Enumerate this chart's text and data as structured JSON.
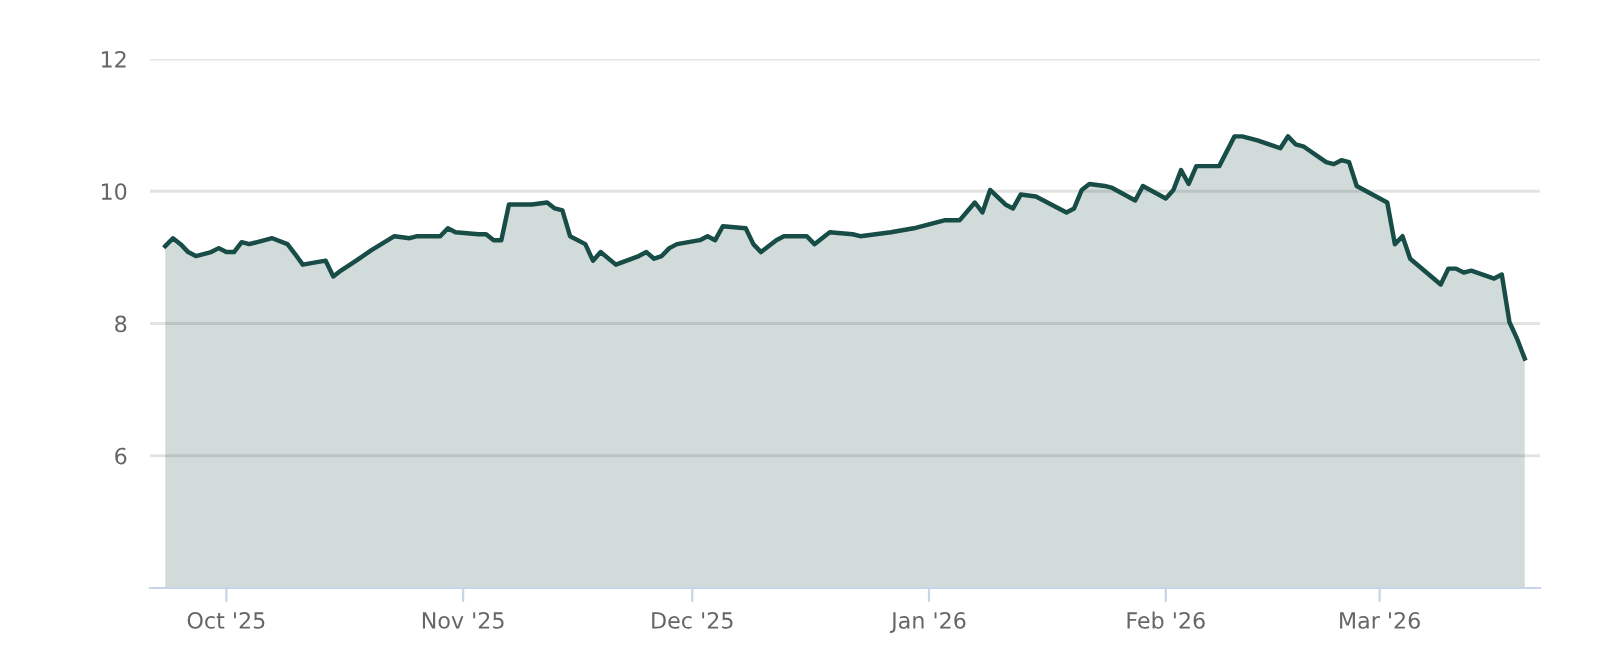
{
  "chart_data": {
    "type": "area",
    "x": [
      "2025-09-23",
      "2025-09-24",
      "2025-09-25",
      "2025-09-26",
      "2025-09-27",
      "2025-09-29",
      "2025-09-30",
      "2025-10-01",
      "2025-10-02",
      "2025-10-03",
      "2025-10-04",
      "2025-10-07",
      "2025-10-09",
      "2025-10-10",
      "2025-10-11",
      "2025-10-14",
      "2025-10-15",
      "2025-10-16",
      "2025-10-18",
      "2025-10-20",
      "2025-10-23",
      "2025-10-25",
      "2025-10-26",
      "2025-10-29",
      "2025-10-30",
      "2025-10-31",
      "2025-11-03",
      "2025-11-04",
      "2025-11-05",
      "2025-11-06",
      "2025-11-07",
      "2025-11-10",
      "2025-11-12",
      "2025-11-13",
      "2025-11-14",
      "2025-11-15",
      "2025-11-17",
      "2025-11-18",
      "2025-11-19",
      "2025-11-21",
      "2025-11-24",
      "2025-11-25",
      "2025-11-26",
      "2025-11-27",
      "2025-11-28",
      "2025-11-29",
      "2025-12-02",
      "2025-12-03",
      "2025-12-04",
      "2025-12-05",
      "2025-12-08",
      "2025-12-09",
      "2025-12-10",
      "2025-12-12",
      "2025-12-13",
      "2025-12-16",
      "2025-12-17",
      "2025-12-19",
      "2025-12-22",
      "2025-12-23",
      "2025-12-27",
      "2025-12-30",
      "2026-01-01",
      "2026-01-03",
      "2026-01-05",
      "2026-01-07",
      "2026-01-08",
      "2026-01-09",
      "2026-01-11",
      "2026-01-12",
      "2026-01-13",
      "2026-01-15",
      "2026-01-18",
      "2026-01-19",
      "2026-01-20",
      "2026-01-21",
      "2026-01-22",
      "2026-01-24",
      "2026-01-25",
      "2026-01-28",
      "2026-01-29",
      "2026-02-01",
      "2026-02-02",
      "2026-02-03",
      "2026-02-04",
      "2026-02-05",
      "2026-02-08",
      "2026-02-10",
      "2026-02-11",
      "2026-02-13",
      "2026-02-16",
      "2026-02-17",
      "2026-02-18",
      "2026-02-19",
      "2026-02-22",
      "2026-02-23",
      "2026-02-24",
      "2026-02-25",
      "2026-02-26",
      "2026-03-02",
      "2026-03-03",
      "2026-03-04",
      "2026-03-05",
      "2026-03-09",
      "2026-03-10",
      "2026-03-11",
      "2026-03-12",
      "2026-03-13",
      "2026-03-16",
      "2026-03-17",
      "2026-03-18",
      "2026-03-19",
      "2026-03-20"
    ],
    "series": [
      {
        "color": "#174c47",
        "values": [
          9.17,
          9.29,
          9.2,
          9.08,
          9.02,
          9.08,
          9.14,
          9.08,
          9.08,
          9.23,
          9.2,
          9.29,
          9.2,
          9.05,
          8.89,
          8.95,
          8.71,
          8.8,
          8.95,
          9.11,
          9.32,
          9.29,
          9.32,
          9.32,
          9.44,
          9.38,
          9.35,
          9.35,
          9.26,
          9.26,
          9.8,
          9.8,
          9.83,
          9.74,
          9.71,
          9.32,
          9.2,
          8.95,
          9.08,
          8.89,
          9.02,
          9.08,
          8.98,
          9.02,
          9.14,
          9.2,
          9.26,
          9.32,
          9.26,
          9.47,
          9.44,
          9.2,
          9.08,
          9.26,
          9.32,
          9.32,
          9.2,
          9.38,
          9.35,
          9.32,
          9.38,
          9.44,
          9.5,
          9.56,
          9.56,
          9.83,
          9.68,
          10.02,
          9.8,
          9.74,
          9.95,
          9.92,
          9.74,
          9.68,
          9.74,
          10.02,
          10.11,
          10.08,
          10.05,
          9.86,
          10.08,
          9.89,
          10.02,
          10.32,
          10.11,
          10.38,
          10.38,
          10.83,
          10.83,
          10.77,
          10.65,
          10.83,
          10.71,
          10.68,
          10.44,
          10.41,
          10.47,
          10.44,
          10.08,
          9.83,
          9.2,
          9.32,
          8.98,
          8.59,
          8.83,
          8.83,
          8.77,
          8.8,
          8.68,
          8.74,
          8.02,
          7.77,
          7.47
        ]
      }
    ],
    "xlim": [
      "2025-09-21",
      "2026-03-22"
    ],
    "xticks": [
      {
        "value": "2025-10-01",
        "label": "Oct '25"
      },
      {
        "value": "2025-11-01",
        "label": "Nov '25"
      },
      {
        "value": "2025-12-01",
        "label": "Dec '25"
      },
      {
        "value": "2026-01-01",
        "label": "Jan '26"
      },
      {
        "value": "2026-02-01",
        "label": "Feb '26"
      },
      {
        "value": "2026-03-01",
        "label": "Mar '26"
      }
    ],
    "ylim": [
      4,
      12
    ],
    "yticks": [
      6,
      8,
      10,
      12
    ],
    "grid": "y",
    "marker": "none",
    "line_style": "solid",
    "legend": false
  }
}
